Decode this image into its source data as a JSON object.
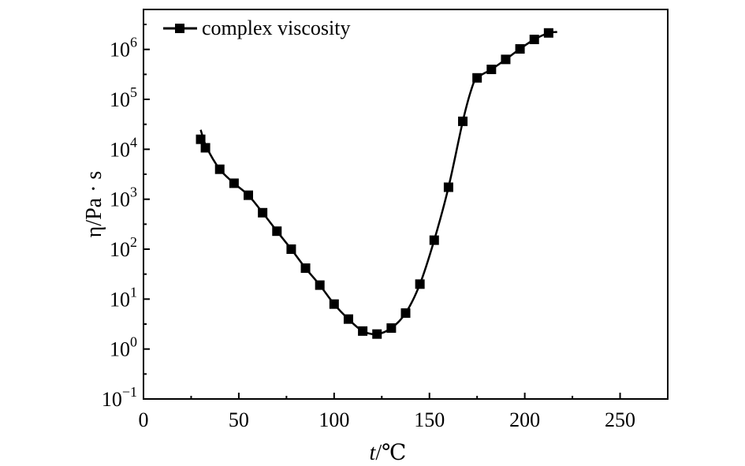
{
  "chart_data": {
    "type": "line",
    "title": "",
    "xlabel_var": "t",
    "xlabel_unit": "/℃",
    "ylabel": "η/Pa · s",
    "xlim": [
      0,
      275
    ],
    "ylim_log10": [
      -1,
      6.8
    ],
    "yscale": "log",
    "grid": false,
    "legend_position": "top-left",
    "x_ticks": [
      {
        "value": 0,
        "label": "0"
      },
      {
        "value": 50,
        "label": "50"
      },
      {
        "value": 100,
        "label": "100"
      },
      {
        "value": 150,
        "label": "150"
      },
      {
        "value": 200,
        "label": "200"
      },
      {
        "value": 250,
        "label": "250"
      }
    ],
    "y_ticks": [
      {
        "exp": -1,
        "base": "10",
        "sup": "−1"
      },
      {
        "exp": 0,
        "base": "10",
        "sup": "0"
      },
      {
        "exp": 1,
        "base": "10",
        "sup": "1"
      },
      {
        "exp": 2,
        "base": "10",
        "sup": "2"
      },
      {
        "exp": 3,
        "base": "10",
        "sup": "3"
      },
      {
        "exp": 4,
        "base": "10",
        "sup": "4"
      },
      {
        "exp": 5,
        "base": "10",
        "sup": "5"
      },
      {
        "exp": 6,
        "base": "10",
        "sup": "6"
      }
    ],
    "series": [
      {
        "name": "complex viscosity",
        "color": "#000000",
        "marker": "square",
        "curve_x": [
          30,
          33,
          40,
          47.5,
          55,
          62.5,
          70,
          77.5,
          85,
          92.5,
          100,
          107.5,
          115,
          122.5,
          130,
          137.5,
          145,
          152.5,
          160,
          167.5,
          172,
          175,
          182.5,
          190,
          197.5,
          205,
          212.5,
          217
        ],
        "curve_log10_y": [
          4.39,
          4.05,
          3.6,
          3.32,
          3.08,
          2.73,
          2.36,
          2.0,
          1.62,
          1.28,
          0.9,
          0.6,
          0.36,
          0.3,
          0.42,
          0.72,
          1.3,
          2.18,
          3.24,
          4.56,
          5.2,
          5.43,
          5.6,
          5.8,
          6.01,
          6.2,
          6.33,
          6.35
        ],
        "points_x": [
          30,
          32.5,
          40,
          47.5,
          55,
          62.5,
          70,
          77.5,
          85,
          92.5,
          100,
          107.5,
          115,
          122.5,
          130,
          137.5,
          145,
          152.5,
          160,
          167.5,
          175,
          182.5,
          190,
          197.5,
          205,
          212.5
        ],
        "points_log10_y": [
          4.2,
          4.03,
          3.6,
          3.32,
          3.08,
          2.73,
          2.36,
          2.0,
          1.62,
          1.28,
          0.9,
          0.6,
          0.36,
          0.3,
          0.42,
          0.72,
          1.3,
          2.18,
          3.24,
          4.56,
          5.43,
          5.6,
          5.8,
          6.01,
          6.2,
          6.33
        ]
      }
    ]
  }
}
